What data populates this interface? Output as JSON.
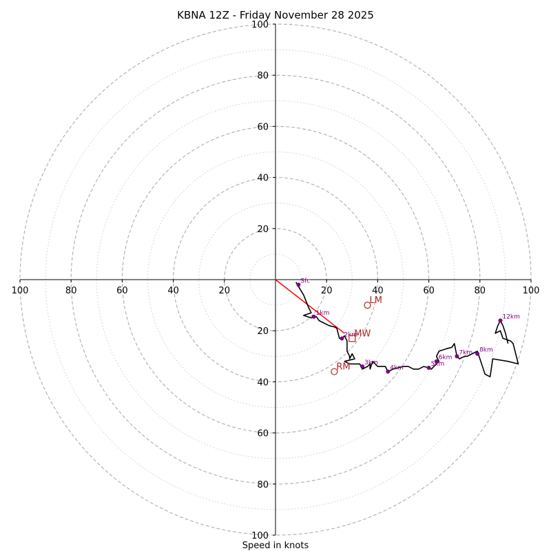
{
  "chart_data": {
    "type": "hodograph",
    "title": "KBNA 12Z - Friday November 28 2025",
    "xlabel": "Speed in knots",
    "range": [
      -100,
      100
    ],
    "ring_major": [
      20,
      40,
      60,
      80,
      100
    ],
    "ring_minor": [
      10,
      30,
      50,
      70,
      90
    ],
    "x_ticks": [
      -100,
      -80,
      -60,
      -40,
      -20,
      20,
      40,
      60,
      80,
      100
    ],
    "x_tick_labels": [
      "100",
      "80",
      "60",
      "40",
      "20",
      "20",
      "40",
      "60",
      "80",
      "100"
    ],
    "y_ticks": [
      100,
      80,
      60,
      40,
      20,
      -20,
      -40,
      -60,
      -80,
      -100
    ],
    "y_tick_labels": [
      "100",
      "80",
      "60",
      "40",
      "20",
      "20",
      "40",
      "60",
      "80",
      "100"
    ],
    "trace": [
      [
        8,
        -1
      ],
      [
        11,
        -6
      ],
      [
        13,
        -11
      ],
      [
        14,
        -13
      ],
      [
        11,
        -14
      ],
      [
        14,
        -15
      ],
      [
        16,
        -14.5
      ],
      [
        17,
        -16
      ],
      [
        19,
        -17
      ],
      [
        21,
        -18
      ],
      [
        23,
        -18.5
      ],
      [
        24,
        -19
      ],
      [
        25,
        -23
      ],
      [
        26,
        -23
      ],
      [
        27,
        -22
      ],
      [
        28,
        -24
      ],
      [
        28,
        -28
      ],
      [
        29,
        -30
      ],
      [
        29,
        -31
      ],
      [
        30,
        -29
      ],
      [
        31,
        -31
      ],
      [
        27,
        -32
      ],
      [
        29,
        -33
      ],
      [
        33,
        -33
      ],
      [
        34,
        -35
      ],
      [
        36,
        -34
      ],
      [
        37,
        -33
      ],
      [
        37,
        -35
      ],
      [
        38,
        -32
      ],
      [
        40,
        -34
      ],
      [
        43,
        -34
      ],
      [
        44,
        -36
      ],
      [
        46,
        -35
      ],
      [
        50,
        -34
      ],
      [
        52,
        -34
      ],
      [
        54,
        -35
      ],
      [
        56,
        -35
      ],
      [
        58,
        -34
      ],
      [
        60,
        -34.5
      ],
      [
        61,
        -35
      ],
      [
        62,
        -34
      ],
      [
        63,
        -33
      ],
      [
        64,
        -32
      ],
      [
        63,
        -30
      ],
      [
        64,
        -28
      ],
      [
        67,
        -27
      ],
      [
        69,
        -26.5
      ],
      [
        70,
        -25
      ],
      [
        71,
        -30
      ],
      [
        72,
        -31
      ],
      [
        74,
        -30
      ],
      [
        75,
        -30
      ],
      [
        77,
        -29
      ],
      [
        79,
        -28
      ],
      [
        80,
        -31
      ],
      [
        82,
        -37
      ],
      [
        84,
        -38
      ],
      [
        85,
        -31
      ],
      [
        91,
        -32
      ],
      [
        95,
        -33
      ],
      [
        93,
        -25
      ],
      [
        92,
        -24
      ],
      [
        89,
        -23
      ],
      [
        88,
        -20
      ],
      [
        86,
        -21
      ],
      [
        87,
        -18
      ],
      [
        88,
        -16
      ],
      [
        89,
        -18
      ],
      [
        90,
        -21
      ],
      [
        91,
        -25
      ]
    ],
    "height_markers": [
      {
        "label": "Sfc",
        "u": 9,
        "v": -2
      },
      {
        "label": "1km",
        "u": 15,
        "v": -14.5
      },
      {
        "label": "2km",
        "u": 26,
        "v": -23
      },
      {
        "label": "3km",
        "u": 34,
        "v": -34
      },
      {
        "label": "4km",
        "u": 44,
        "v": -36
      },
      {
        "label": "5km",
        "u": 60,
        "v": -34.5
      },
      {
        "label": "6km",
        "u": 63,
        "v": -32
      },
      {
        "label": "7km",
        "u": 71,
        "v": -30
      },
      {
        "label": "8km",
        "u": 79,
        "v": -29
      },
      {
        "label": "12km",
        "u": 88,
        "v": -16
      }
    ],
    "shear_line": {
      "from": [
        0,
        0
      ],
      "to": [
        27,
        -21
      ]
    },
    "motion_points": [
      {
        "label": "LM",
        "u": 36,
        "v": -10,
        "marker": "circle"
      },
      {
        "label": "MW",
        "u": 30,
        "v": -23,
        "marker": "square"
      },
      {
        "label": "RM",
        "u": 23,
        "v": -36,
        "marker": "circle"
      }
    ],
    "colors": {
      "trace": "#000000",
      "height_marker": "#800080",
      "shear_line": "#ff0000",
      "motion": "#b22222",
      "ring": "#b3b3b3",
      "axis": "#000000"
    }
  }
}
